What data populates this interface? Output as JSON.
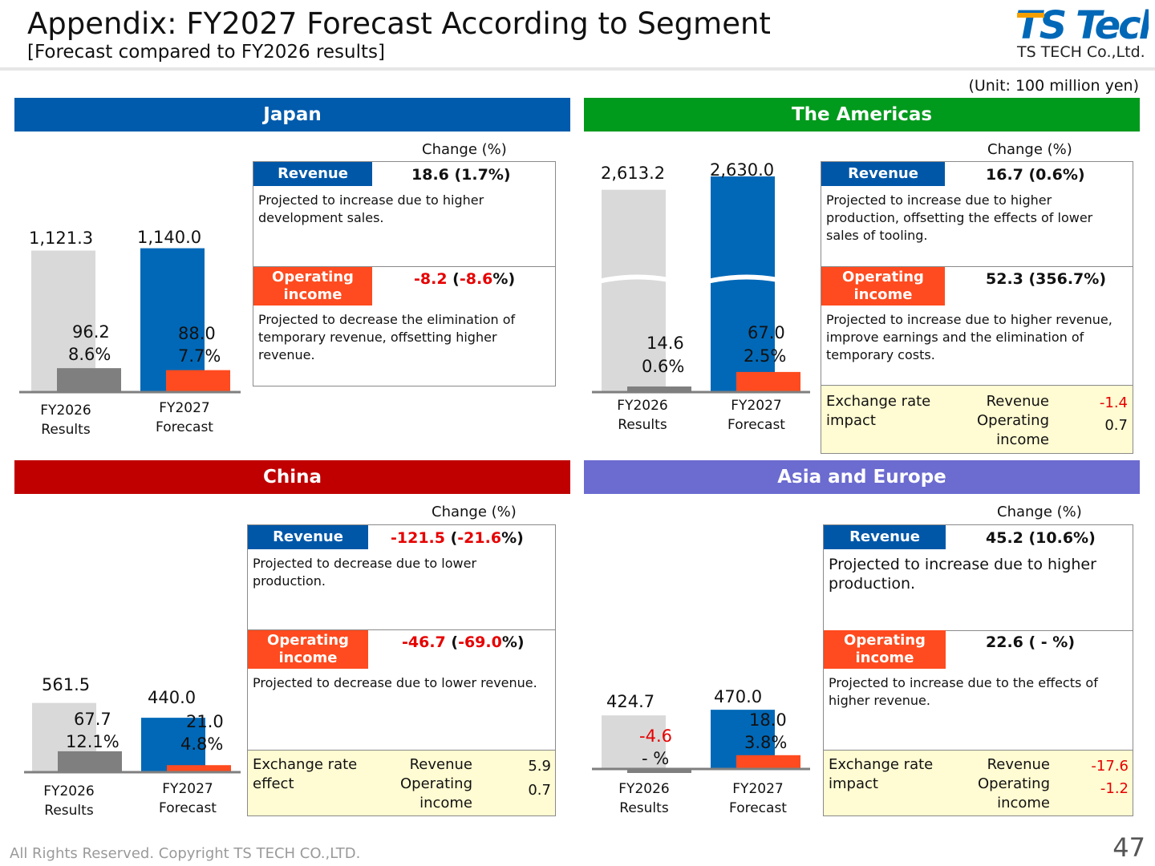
{
  "header": {
    "title": "Appendix: FY2027 Forecast According to Segment",
    "subtitle": "[Forecast compared to FY2026 results]",
    "logo_text": "TS Tech",
    "company": "TS TECH Co.,Ltd.",
    "unit": "(Unit: 100 million yen)"
  },
  "labels": {
    "change_caption": "Change (%)",
    "revenue_tag": "Revenue",
    "op_tag": "Operating income",
    "cat_results": [
      "FY2026",
      "Results"
    ],
    "cat_forecast": [
      "FY2027",
      "Forecast"
    ]
  },
  "colors": {
    "japan": "#005bac",
    "americas": "#009a1c",
    "china": "#c00000",
    "asia_europe": "#6b6bd0",
    "forecast_bar": "#0068b7",
    "results_bar": "#d9d9d9",
    "results_op": "#7f7f7f",
    "forecast_op": "#ff4b1f",
    "negative": "#e60000"
  },
  "segments": {
    "japan": {
      "name": "Japan",
      "revenue_change": "18.6 (1.7%)",
      "revenue_desc": "Projected to increase due to higher development sales.",
      "op_change_abs": "-8.2",
      "op_change_pct": "-8.6",
      "op_desc": "Projected to decrease the elimination of temporary revenue, offsetting higher revenue."
    },
    "americas": {
      "name": "The Americas",
      "revenue_change": "16.7 (0.6%)",
      "revenue_desc": "Projected to increase due to higher production, offsetting the effects of lower sales of tooling.",
      "op_change": "52.3 (356.7%)",
      "op_desc": "Projected to increase due to higher revenue, improve earnings and the elimination of temporary costs.",
      "fx_label": "Exchange rate impact",
      "fx_rev_label": "Revenue",
      "fx_op_label": "Operating income",
      "fx_rev": "-1.4",
      "fx_op": "0.7"
    },
    "china": {
      "name": "China",
      "revenue_change_abs": "-121.5",
      "revenue_change_pct": "-21.6",
      "revenue_desc": "Projected to decrease due to lower production.",
      "op_change_abs": "-46.7",
      "op_change_pct": "-69.0",
      "op_desc": "Projected to decrease due to lower revenue.",
      "fx_label": "Exchange rate effect",
      "fx_rev_label": "Revenue",
      "fx_op_label": "Operating income",
      "fx_rev": "5.9",
      "fx_op": "0.7"
    },
    "asia_europe": {
      "name": "Asia and Europe",
      "revenue_change": "45.2 (10.6%)",
      "revenue_desc": "Projected to increase due to higher production.",
      "op_change": "22.6 ( - %)",
      "op_desc": "Projected to increase due to the effects of higher revenue.",
      "fx_label": "Exchange rate impact",
      "fx_rev_label": "Revenue",
      "fx_op_label": "Operating income",
      "fx_rev": "-17.6",
      "fx_op": "-1.2"
    }
  },
  "chart_data": [
    {
      "type": "bar",
      "segment": "Japan",
      "categories": [
        "FY2026 Results",
        "FY2027 Forecast"
      ],
      "revenue": [
        1121.3,
        1140.0
      ],
      "revenue_labels": [
        "1,121.3",
        "1,140.0"
      ],
      "operating_income": [
        96.2,
        88.0
      ],
      "op_labels": [
        "96.2",
        "88.0"
      ],
      "margin_labels": [
        "8.6%",
        "7.7%"
      ]
    },
    {
      "type": "bar",
      "segment": "The Americas",
      "categories": [
        "FY2026 Results",
        "FY2027 Forecast"
      ],
      "revenue": [
        2613.2,
        2630.0
      ],
      "revenue_labels": [
        "2,613.2",
        "2,630.0"
      ],
      "operating_income": [
        14.6,
        67.0
      ],
      "op_labels": [
        "14.6",
        "67.0"
      ],
      "margin_labels": [
        "0.6%",
        "2.5%"
      ],
      "broken_axis": true
    },
    {
      "type": "bar",
      "segment": "China",
      "categories": [
        "FY2026 Results",
        "FY2027 Forecast"
      ],
      "revenue": [
        561.5,
        440.0
      ],
      "revenue_labels": [
        "561.5",
        "440.0"
      ],
      "operating_income": [
        67.7,
        21.0
      ],
      "op_labels": [
        "67.7",
        "21.0"
      ],
      "margin_labels": [
        "12.1%",
        "4.8%"
      ]
    },
    {
      "type": "bar",
      "segment": "Asia and Europe",
      "categories": [
        "FY2026 Results",
        "FY2027 Forecast"
      ],
      "revenue": [
        424.7,
        470.0
      ],
      "revenue_labels": [
        "424.7",
        "470.0"
      ],
      "operating_income": [
        -4.6,
        18.0
      ],
      "op_labels": [
        "-4.6",
        "18.0"
      ],
      "margin_labels": [
        "- %",
        "3.8%"
      ]
    }
  ],
  "footer": {
    "copyright": "All Rights Reserved. Copyright TS TECH CO.,LTD.",
    "page": "47"
  }
}
